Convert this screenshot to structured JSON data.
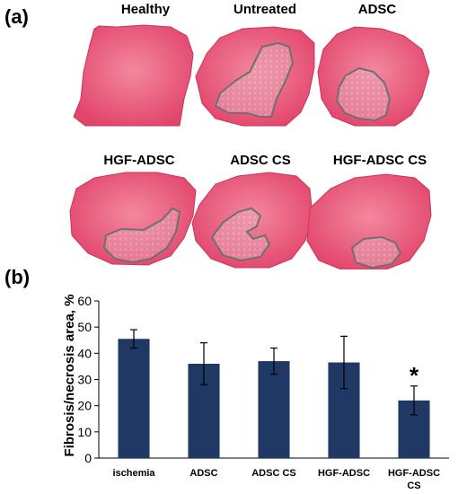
{
  "panel_a": {
    "label": "(a)",
    "images": [
      {
        "title": "Healthy",
        "outline": false
      },
      {
        "title": "Untreated",
        "outline": true
      },
      {
        "title": "ADSC",
        "outline": true
      },
      {
        "title": "HGF-ADSC",
        "outline": true
      },
      {
        "title": "ADSC CS",
        "outline": true
      },
      {
        "title": "HGF-ADSC CS",
        "outline": true
      }
    ],
    "colors": {
      "tissue": "#e24b6f",
      "tissue_light": "#f08aa3",
      "fibrosis": "#e8a9b8",
      "outline": "#707070"
    }
  },
  "panel_b": {
    "label": "(b)"
  },
  "chart_data": {
    "type": "bar",
    "title": "",
    "xlabel": "",
    "ylabel": "Fibrosis/necrosis  area, %",
    "categories": [
      "ischemia",
      "ADSC",
      "ADSC CS",
      "HGF-ADSC",
      "HGF-ADSC CS"
    ],
    "values": [
      45.5,
      36,
      37,
      36.5,
      22
    ],
    "errors": [
      3.5,
      8,
      5,
      10,
      5.5
    ],
    "annotations": [
      "",
      "",
      "",
      "",
      "*"
    ],
    "ylim": [
      0,
      60
    ],
    "yticks": [
      0,
      10,
      20,
      30,
      40,
      50,
      60
    ],
    "grid": false,
    "bar_color": "#1f3864"
  }
}
